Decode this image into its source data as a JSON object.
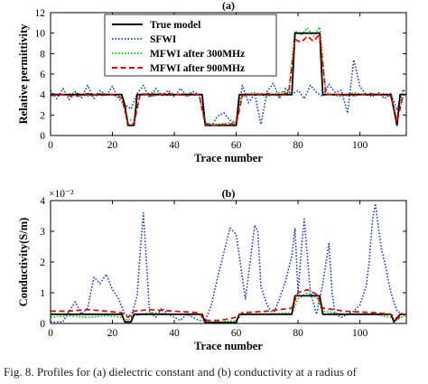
{
  "figure": {
    "caption": "Fig. 8.   Profiles for (a) dielectric constant and (b) conductivity at a radius of"
  },
  "chart_data": [
    {
      "type": "line",
      "panel_title": "(a)",
      "xlabel": "Trace number",
      "ylabel": "Relative permittivity",
      "xlim": [
        0,
        115
      ],
      "ylim": [
        0,
        12
      ],
      "xticks": [
        0,
        20,
        40,
        60,
        80,
        100
      ],
      "yticks": [
        0,
        2,
        4,
        6,
        8,
        10,
        12
      ],
      "legend_position": "top-left",
      "series": [
        {
          "name": "True model",
          "color": "#000000",
          "style": "solid",
          "x": [
            0,
            23,
            24,
            25,
            27,
            28,
            49,
            50,
            60,
            61,
            78,
            79,
            87,
            88,
            110,
            111,
            112,
            113,
            115
          ],
          "y": [
            4,
            4,
            3,
            1,
            1,
            4,
            4,
            1,
            1,
            4,
            4,
            10,
            10,
            4,
            4,
            2.5,
            1,
            4,
            4
          ]
        },
        {
          "name": "SFWI",
          "color": "#1f3fbf",
          "style": "dotted",
          "x": [
            0,
            2,
            4,
            6,
            8,
            10,
            12,
            14,
            16,
            18,
            20,
            22,
            24,
            26,
            28,
            30,
            32,
            34,
            36,
            38,
            40,
            42,
            44,
            46,
            48,
            50,
            52,
            54,
            56,
            58,
            60,
            62,
            64,
            66,
            68,
            70,
            72,
            74,
            76,
            78,
            80,
            82,
            84,
            86,
            88,
            90,
            92,
            94,
            96,
            98,
            100,
            102,
            104,
            106,
            108,
            110,
            112,
            114,
            115
          ],
          "y": [
            4.4,
            3.6,
            4.6,
            3.5,
            4.3,
            3.7,
            4.9,
            3.6,
            4.4,
            3.9,
            4.8,
            3.6,
            3.0,
            2.6,
            4.1,
            4.9,
            3.7,
            4.6,
            3.9,
            4.4,
            3.8,
            4.6,
            3.9,
            4.3,
            4.0,
            1.3,
            1.0,
            1.9,
            2.2,
            1.5,
            1.2,
            4.9,
            3.2,
            4.1,
            1.1,
            4.3,
            5.1,
            3.6,
            4.6,
            4.0,
            4.4,
            3.6,
            4.9,
            4.2,
            3.8,
            5.0,
            4.2,
            4.4,
            2.2,
            7.4,
            4.8,
            4.0,
            3.8,
            4.2,
            3.6,
            4.1,
            2.5,
            4.5,
            4.2
          ]
        },
        {
          "name": "MFWI after 300MHz",
          "color": "#00c800",
          "style": "dotted",
          "x": [
            0,
            4,
            8,
            12,
            16,
            20,
            23,
            25,
            27,
            29,
            33,
            38,
            44,
            48,
            50,
            53,
            57,
            60,
            62,
            66,
            70,
            74,
            77,
            79,
            81,
            83,
            85,
            87,
            89,
            93,
            98,
            103,
            108,
            110,
            112,
            114,
            115
          ],
          "y": [
            4.1,
            3.9,
            4.2,
            3.8,
            4.1,
            4.0,
            3.6,
            1.5,
            1.5,
            4.0,
            4.2,
            3.9,
            4.1,
            4.0,
            1.2,
            1.1,
            1.2,
            1.3,
            3.9,
            4.2,
            3.8,
            4.2,
            4.3,
            10.2,
            9.8,
            10.5,
            9.7,
            10.6,
            4.2,
            3.8,
            4.2,
            3.9,
            4.1,
            3.8,
            1.6,
            4.0,
            4.0
          ]
        },
        {
          "name": "MFWI after 900MHz",
          "color": "#e00000",
          "style": "dashed",
          "x": [
            0,
            4,
            8,
            12,
            16,
            20,
            23,
            25,
            27,
            29,
            33,
            38,
            44,
            48,
            50,
            53,
            57,
            60,
            62,
            66,
            70,
            74,
            77,
            79,
            81,
            83,
            85,
            87,
            89,
            93,
            98,
            103,
            108,
            110,
            112,
            114,
            115
          ],
          "y": [
            3.9,
            4.0,
            3.8,
            4.1,
            3.9,
            4.0,
            3.7,
            1.2,
            1.2,
            4.1,
            3.9,
            4.1,
            3.9,
            4.0,
            1.1,
            1.0,
            1.1,
            1.1,
            3.9,
            4.0,
            4.1,
            3.9,
            4.2,
            9.4,
            9.1,
            9.7,
            9.2,
            9.9,
            4.0,
            4.0,
            3.9,
            4.1,
            3.9,
            3.9,
            1.3,
            4.0,
            4.0
          ]
        }
      ]
    },
    {
      "type": "line",
      "panel_title": "(b)",
      "xlabel": "Trace number",
      "ylabel": "Conductivity(S/m)",
      "scale_factor_label": "×10⁻²",
      "xlim": [
        0,
        115
      ],
      "ylim": [
        0,
        4
      ],
      "xticks": [
        0,
        20,
        40,
        60,
        80,
        100
      ],
      "yticks": [
        0,
        1,
        2,
        3,
        4
      ],
      "series": [
        {
          "name": "True model",
          "color": "#000000",
          "style": "solid",
          "x": [
            0,
            23,
            24,
            26,
            27,
            49,
            50,
            60,
            61,
            78,
            79,
            87,
            88,
            110,
            111,
            113,
            115
          ],
          "y": [
            0.3,
            0.3,
            0.05,
            0.05,
            0.3,
            0.3,
            0.03,
            0.03,
            0.3,
            0.3,
            0.9,
            0.9,
            0.3,
            0.3,
            0.05,
            0.3,
            0.3
          ]
        },
        {
          "name": "SFWI",
          "color": "#1f3fbf",
          "style": "dotted",
          "x": [
            0,
            4,
            6,
            8,
            10,
            12,
            14,
            16,
            18,
            20,
            22,
            24,
            26,
            28,
            29,
            30,
            31,
            32,
            34,
            36,
            38,
            40,
            42,
            44,
            46,
            48,
            50,
            52,
            54,
            56,
            58,
            60,
            62,
            63,
            64,
            66,
            67,
            68,
            70,
            72,
            74,
            76,
            78,
            79,
            80,
            81,
            82,
            84,
            86,
            88,
            90,
            91,
            92,
            94,
            96,
            98,
            100,
            102,
            103,
            104,
            105,
            106,
            107,
            108,
            110,
            112,
            114,
            115
          ],
          "y": [
            0.05,
            0.05,
            0.4,
            0.7,
            0.3,
            0.5,
            1.5,
            1.3,
            1.6,
            1.1,
            0.8,
            0.3,
            0.2,
            0.9,
            2.4,
            3.6,
            2.0,
            0.4,
            0.2,
            0.5,
            0.3,
            0.2,
            0.1,
            0.3,
            0.2,
            0.1,
            0.1,
            0.6,
            1.5,
            2.3,
            3.1,
            2.9,
            1.5,
            0.8,
            1.6,
            3.2,
            3.0,
            1.2,
            0.6,
            0.3,
            0.8,
            1.4,
            2.2,
            3.1,
            1.0,
            2.3,
            3.4,
            1.0,
            0.3,
            1.3,
            2.6,
            1.0,
            0.3,
            0.2,
            0.3,
            0.4,
            0.6,
            1.2,
            2.0,
            3.3,
            3.9,
            3.1,
            2.4,
            2.0,
            1.0,
            0.4,
            0.3,
            0.3
          ]
        },
        {
          "name": "MFWI after 300MHz",
          "color": "#00c800",
          "style": "dotted",
          "x": [
            0,
            6,
            12,
            18,
            23,
            25,
            27,
            32,
            40,
            48,
            50,
            55,
            60,
            62,
            70,
            78,
            80,
            83,
            86,
            88,
            95,
            105,
            110,
            112,
            114,
            115
          ],
          "y": [
            0.2,
            0.25,
            0.2,
            0.25,
            0.2,
            0.1,
            0.25,
            0.35,
            0.3,
            0.3,
            0.05,
            0.05,
            0.1,
            0.3,
            0.3,
            0.35,
            0.8,
            1.0,
            0.85,
            0.4,
            0.3,
            0.3,
            0.2,
            0.1,
            0.25,
            0.25
          ]
        },
        {
          "name": "MFWI after 900MHz",
          "color": "#e00000",
          "style": "dashed",
          "x": [
            0,
            6,
            12,
            18,
            23,
            25,
            27,
            32,
            40,
            48,
            50,
            55,
            60,
            62,
            70,
            78,
            80,
            83,
            86,
            88,
            95,
            105,
            110,
            112,
            114,
            115
          ],
          "y": [
            0.4,
            0.4,
            0.45,
            0.4,
            0.35,
            0.2,
            0.4,
            0.45,
            0.4,
            0.35,
            0.1,
            0.1,
            0.2,
            0.35,
            0.4,
            0.5,
            1.0,
            1.1,
            0.95,
            0.5,
            0.4,
            0.35,
            0.3,
            0.15,
            0.3,
            0.3
          ]
        }
      ]
    }
  ]
}
